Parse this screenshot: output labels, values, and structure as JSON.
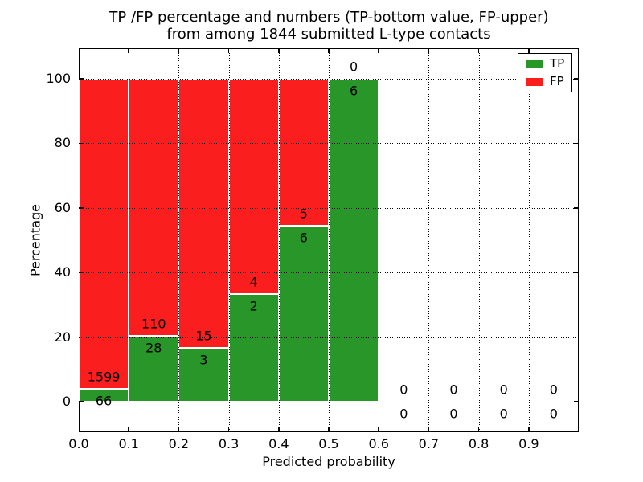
{
  "chart_data": {
    "type": "bar",
    "stacked": true,
    "title": "TP /FP percentage and numbers (TP-bottom value, FP-upper)",
    "subtitle": "from among 1844 submitted L-type contacts",
    "xlabel": "Predicted probability",
    "ylabel": "Percentage",
    "total_submitted": 1844,
    "xlim": [
      0.0,
      1.0
    ],
    "ylim": [
      -9.5,
      109.5
    ],
    "grid": "dotted",
    "legend_position": "upper right",
    "bin_width": 0.1,
    "categories": [
      "0.0-0.1",
      "0.1-0.2",
      "0.2-0.3",
      "0.3-0.4",
      "0.4-0.5",
      "0.5-0.6",
      "0.6-0.7",
      "0.7-0.8",
      "0.8-0.9",
      "0.9-1.0"
    ],
    "x_tick_labels": [
      "0.0",
      "0.1",
      "0.2",
      "0.3",
      "0.4",
      "0.5",
      "0.6",
      "0.7",
      "0.8",
      "0.9"
    ],
    "y_tick_values": [
      0,
      20,
      40,
      60,
      80,
      100
    ],
    "series": [
      {
        "name": "TP",
        "color": "#289628",
        "counts": [
          66,
          28,
          3,
          2,
          6,
          6,
          0,
          0,
          0,
          0
        ]
      },
      {
        "name": "FP",
        "color": "#fb1e1e",
        "counts": [
          1599,
          110,
          15,
          4,
          5,
          0,
          0,
          0,
          0,
          0
        ]
      }
    ],
    "tp_percent": [
      3.96,
      20.29,
      16.67,
      33.33,
      54.55,
      100.0,
      0,
      0,
      0,
      0
    ]
  }
}
